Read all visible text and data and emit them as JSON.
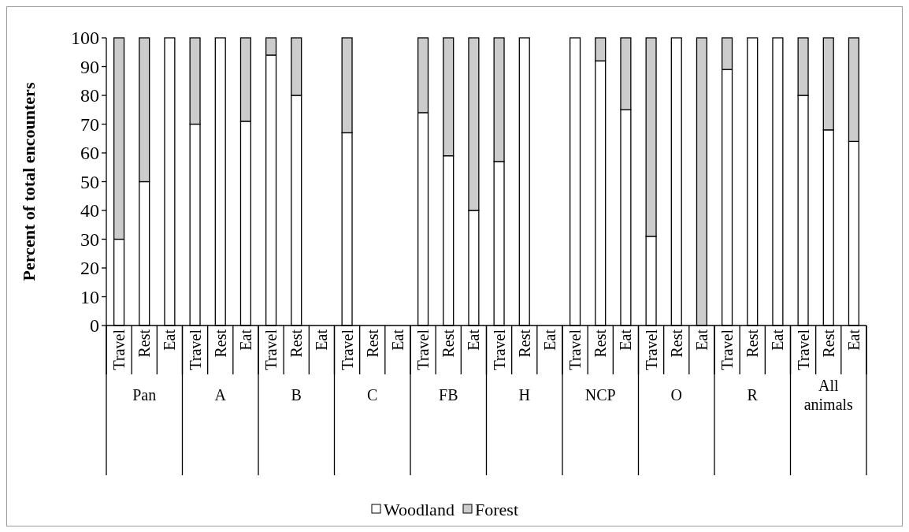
{
  "chart_data": {
    "type": "bar",
    "stacked": true,
    "ylabel": "Percent of total encounters",
    "categories": [
      "Travel",
      "Rest",
      "Eat",
      "Travel",
      "Rest",
      "Eat",
      "Travel",
      "Rest",
      "Eat",
      "Travel",
      "Rest",
      "Eat",
      "Travel",
      "Rest",
      "Eat",
      "Travel",
      "Rest",
      "Eat",
      "Travel",
      "Rest",
      "Eat",
      "Travel",
      "Rest",
      "Eat",
      "Travel",
      "Rest",
      "Eat",
      "Travel",
      "Rest",
      "Eat"
    ],
    "annotations": [
      "Pan",
      "A",
      "B",
      "C",
      "FB",
      "H",
      "NCP",
      "O",
      "R",
      "All animals"
    ],
    "series": [
      {
        "name": "Woodland",
        "color": "#ffffff",
        "values": [
          30,
          50,
          100,
          70,
          100,
          71,
          94,
          80,
          null,
          67,
          null,
          null,
          74,
          59,
          40,
          57,
          100,
          null,
          100,
          92,
          75,
          31,
          100,
          0,
          89,
          100,
          100,
          80,
          68,
          64
        ]
      },
      {
        "name": "Forest",
        "color": "#cccccc",
        "values": [
          70,
          50,
          0,
          30,
          0,
          29,
          6,
          20,
          null,
          33,
          null,
          null,
          26,
          41,
          60,
          43,
          0,
          null,
          0,
          8,
          25,
          69,
          0,
          100,
          11,
          0,
          0,
          20,
          32,
          36
        ]
      }
    ],
    "ylim": [
      0,
      100
    ],
    "yticks": [
      0,
      10,
      20,
      30,
      40,
      50,
      60,
      70,
      80,
      90,
      100
    ],
    "grid": false,
    "legend": "bottom"
  }
}
